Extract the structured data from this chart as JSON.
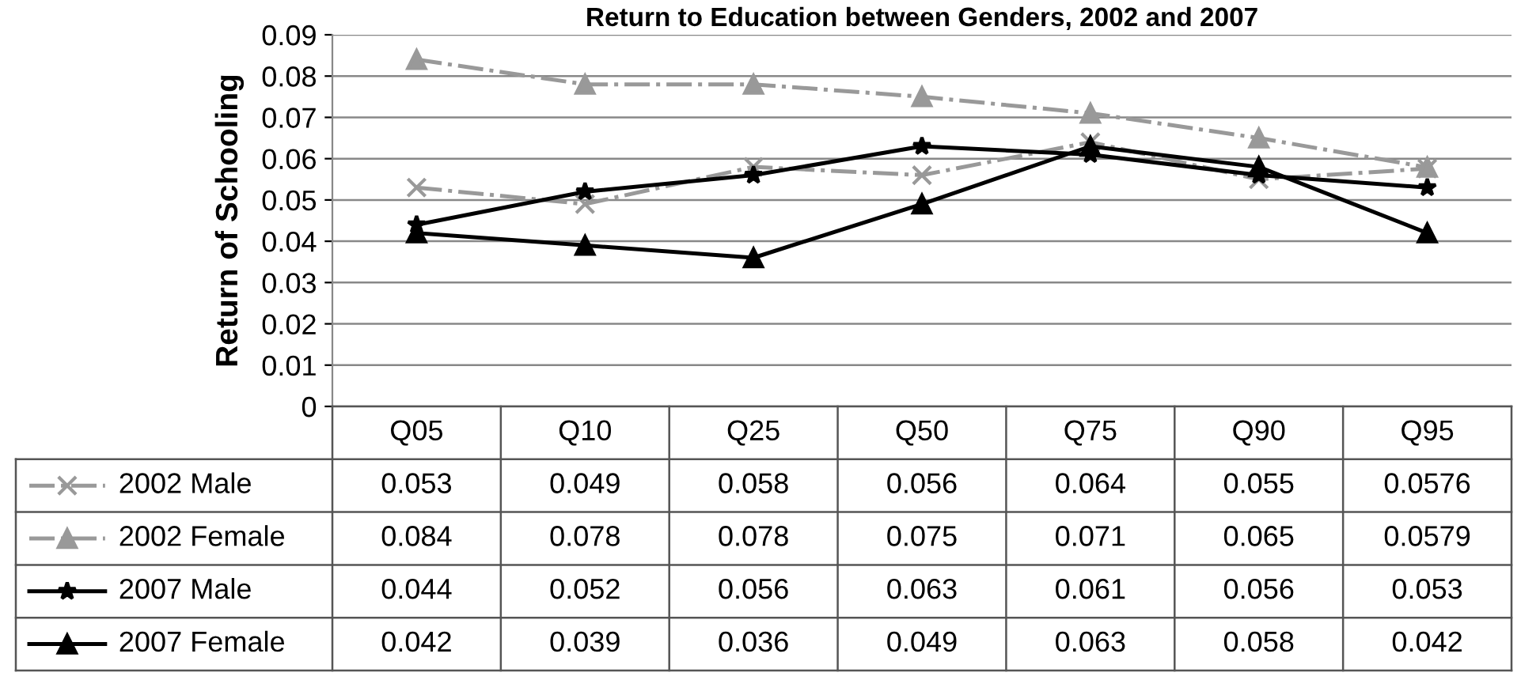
{
  "chart_data": {
    "type": "line",
    "title": "Return to Education between Genders, 2002 and 2007",
    "ylabel": "Return of Schooling",
    "categories": [
      "Q05",
      "Q10",
      "Q25",
      "Q50",
      "Q75",
      "Q90",
      "Q95"
    ],
    "series": [
      {
        "name": "2002 Male",
        "color": "#999999",
        "marker": "cross",
        "line_style": "dashdot",
        "values": [
          0.053,
          0.049,
          0.058,
          0.056,
          0.064,
          0.055,
          0.0576
        ]
      },
      {
        "name": "2002 Female",
        "color": "#999999",
        "marker": "triangle",
        "line_style": "dashdot",
        "values": [
          0.084,
          0.078,
          0.078,
          0.075,
          0.071,
          0.065,
          0.0579
        ]
      },
      {
        "name": "2007 Male",
        "color": "#000000",
        "marker": "star",
        "line_style": "solid",
        "values": [
          0.044,
          0.052,
          0.056,
          0.063,
          0.061,
          0.056,
          0.053
        ]
      },
      {
        "name": "2007 Female",
        "color": "#000000",
        "marker": "triangle",
        "line_style": "solid",
        "values": [
          0.042,
          0.039,
          0.036,
          0.049,
          0.063,
          0.058,
          0.042
        ]
      }
    ],
    "ylim": [
      0,
      0.09
    ],
    "yticks": [
      0,
      0.01,
      0.02,
      0.03,
      0.04,
      0.05,
      0.06,
      0.07,
      0.08,
      0.09
    ],
    "grid": "y",
    "legend": "left",
    "data_labels": true
  }
}
